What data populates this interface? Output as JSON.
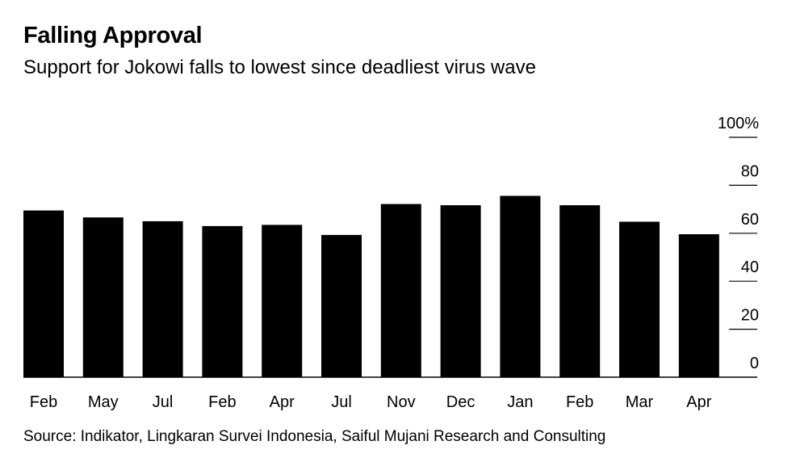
{
  "header": {
    "title": "Falling Approval",
    "subtitle": "Support for Jokowi falls to lowest since deadliest virus wave"
  },
  "footer": {
    "source": "Source: Indikator, Lingkaran Survei Indonesia, Saiful Mujani Research and Consulting"
  },
  "colors": {
    "bar": "#000000",
    "axis": "#000000",
    "background": "#ffffff"
  },
  "chart_data": {
    "type": "bar",
    "title": "Falling Approval",
    "subtitle": "Support for Jokowi falls to lowest since deadliest virus wave",
    "xlabel": "",
    "ylabel": "",
    "categories": [
      "Feb",
      "May",
      "Jul",
      "Feb",
      "Apr",
      "Jul",
      "Nov",
      "Dec",
      "Jan",
      "Feb",
      "Mar",
      "Apr"
    ],
    "values": [
      69.5,
      66.6,
      65,
      63,
      63.5,
      59.3,
      72.2,
      71.7,
      75.6,
      71.7,
      64.8,
      59.6
    ],
    "ylim": [
      0,
      100
    ],
    "yticks": [
      0,
      20,
      40,
      60,
      80,
      100
    ],
    "ytick_labels": [
      "0",
      "20",
      "40",
      "60",
      "80",
      "100%"
    ],
    "grid": false,
    "y_axis_side": "right"
  }
}
